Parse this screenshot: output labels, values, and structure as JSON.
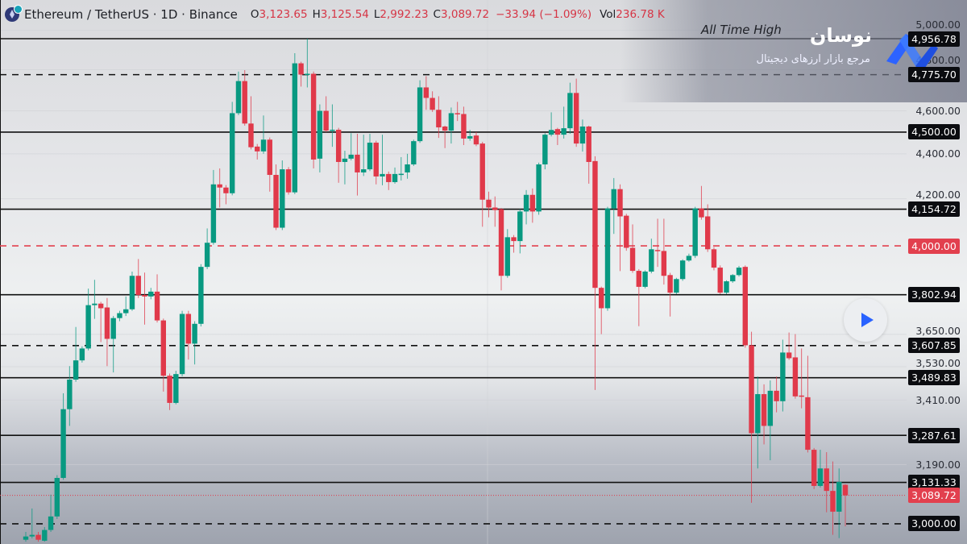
{
  "header": {
    "symbol": "Ethereum / TetherUS · 1D · Binance",
    "open_key": "O",
    "open": "3,123.65",
    "high_key": "H",
    "high": "3,125.54",
    "low_key": "L",
    "low": "2,992.23",
    "close_key": "C",
    "close": "3,089.72",
    "change": "−33.94 (−1.09%)",
    "vol_key": "Vol",
    "vol": "236.78 K"
  },
  "watermark": {
    "title": "نوسان",
    "subtitle": "مرجع بازار ارزهای دیجیتال"
  },
  "annotation": "All Time High",
  "colors": {
    "up": "#089981",
    "down": "#e0394a",
    "level": "#0b0c10",
    "key_level": "#e2404e"
  },
  "chart_data": {
    "type": "candlestick",
    "title": "Ethereum / TetherUS · 1D · Binance",
    "scale": "log",
    "ylim": [
      2935,
      5060
    ],
    "y_ticks": [
      "5,000.00",
      "4,800.00",
      "4,600.00",
      "4,400.00",
      "4,200.00",
      "3,650.00",
      "3,530.00",
      "3,410.00",
      "3,190.00"
    ],
    "y_tick_values": [
      5000,
      4800,
      4600,
      4400,
      4200,
      3650,
      3530,
      3410,
      3190
    ],
    "levels": [
      {
        "value": 4956.78,
        "label": "4,956.78",
        "style": "solid",
        "color": "black"
      },
      {
        "value": 4775.7,
        "label": "4,775.70",
        "style": "dashed",
        "color": "black"
      },
      {
        "value": 4500.0,
        "label": "4,500.00",
        "style": "solid",
        "color": "black"
      },
      {
        "value": 4154.72,
        "label": "4,154.72",
        "style": "solid",
        "color": "black"
      },
      {
        "value": 4000.0,
        "label": "4,000.00",
        "style": "dashed",
        "color": "red"
      },
      {
        "value": 3802.94,
        "label": "3,802.94",
        "style": "solid",
        "color": "black"
      },
      {
        "value": 3607.85,
        "label": "3,607.85",
        "style": "dashed",
        "color": "black"
      },
      {
        "value": 3489.83,
        "label": "3,489.83",
        "style": "solid",
        "color": "black"
      },
      {
        "value": 3287.61,
        "label": "3,287.61",
        "style": "solid",
        "color": "black"
      },
      {
        "value": 3131.33,
        "label": "3,131.33",
        "style": "solid",
        "color": "black"
      },
      {
        "value": 3000.0,
        "label": "3,000.00",
        "style": "dashed",
        "color": "black"
      }
    ],
    "last_price": {
      "value": 3089.72,
      "label": "3,089.72"
    },
    "ohlc": [
      [
        2951,
        2975,
        2945,
        2961
      ],
      [
        2961,
        3048,
        2955,
        2966
      ],
      [
        2966,
        2975,
        2945,
        2951
      ],
      [
        2948,
        2990,
        2945,
        2981
      ],
      [
        2981,
        3092,
        2975,
        3023
      ],
      [
        3023,
        3155,
        3015,
        3146
      ],
      [
        3146,
        3434,
        3140,
        3378
      ],
      [
        3378,
        3532,
        3320,
        3483
      ],
      [
        3483,
        3678,
        3475,
        3553
      ],
      [
        3553,
        3605,
        3545,
        3597
      ],
      [
        3597,
        3827,
        3590,
        3762
      ],
      [
        3762,
        3862,
        3709,
        3768
      ],
      [
        3768,
        3775,
        3621,
        3750
      ],
      [
        3753,
        3790,
        3532,
        3633
      ],
      [
        3633,
        3720,
        3509,
        3712
      ],
      [
        3712,
        3740,
        3700,
        3731
      ],
      [
        3731,
        3796,
        3720,
        3746
      ],
      [
        3746,
        3895,
        3740,
        3878
      ],
      [
        3878,
        3946,
        3790,
        3802
      ],
      [
        3802,
        3891,
        3687,
        3796
      ],
      [
        3796,
        3830,
        3785,
        3815
      ],
      [
        3815,
        3884,
        3695,
        3703
      ],
      [
        3703,
        3710,
        3440,
        3497
      ],
      [
        3497,
        3505,
        3375,
        3400
      ],
      [
        3400,
        3515,
        3395,
        3503
      ],
      [
        3503,
        3740,
        3495,
        3728
      ],
      [
        3728,
        3740,
        3556,
        3615
      ],
      [
        3615,
        3700,
        3538,
        3690
      ],
      [
        3690,
        3925,
        3680,
        3914
      ],
      [
        3914,
        4073,
        3905,
        4013
      ],
      [
        4013,
        4327,
        4005,
        4263
      ],
      [
        4263,
        4334,
        4162,
        4249
      ],
      [
        4249,
        4260,
        4176,
        4224
      ],
      [
        4224,
        4643,
        4215,
        4589
      ],
      [
        4589,
        4791,
        4580,
        4744
      ],
      [
        4744,
        4798,
        4530,
        4540
      ],
      [
        4540,
        4670,
        4420,
        4430
      ],
      [
        4433,
        4445,
        4374,
        4411
      ],
      [
        4411,
        4578,
        4400,
        4465
      ],
      [
        4465,
        4475,
        4231,
        4305
      ],
      [
        4305,
        4352,
        4066,
        4076
      ],
      [
        4076,
        4370,
        4066,
        4330
      ],
      [
        4330,
        4340,
        4218,
        4228
      ],
      [
        4228,
        4883,
        4220,
        4832
      ],
      [
        4832,
        4840,
        4717,
        4776
      ],
      [
        4776,
        4957,
        4713,
        4780
      ],
      [
        4780,
        4791,
        4334,
        4374
      ],
      [
        4378,
        4631,
        4316,
        4600
      ],
      [
        4600,
        4670,
        4500,
        4507
      ],
      [
        4507,
        4631,
        4432,
        4511
      ],
      [
        4511,
        4520,
        4270,
        4363
      ],
      [
        4363,
        4414,
        4263,
        4378
      ],
      [
        4378,
        4495,
        4370,
        4396
      ],
      [
        4396,
        4492,
        4214,
        4316
      ],
      [
        4316,
        4488,
        4300,
        4330
      ],
      [
        4330,
        4492,
        4322,
        4451
      ],
      [
        4451,
        4460,
        4263,
        4298
      ],
      [
        4298,
        4488,
        4259,
        4309
      ],
      [
        4309,
        4320,
        4238,
        4273
      ],
      [
        4273,
        4338,
        4266,
        4309
      ],
      [
        4305,
        4385,
        4280,
        4310
      ],
      [
        4316,
        4400,
        4288,
        4352
      ],
      [
        4352,
        4465,
        4345,
        4458
      ],
      [
        4458,
        4748,
        4450,
        4713
      ],
      [
        4713,
        4768,
        4605,
        4662
      ],
      [
        4662,
        4694,
        4595,
        4605
      ],
      [
        4605,
        4670,
        4473,
        4522
      ],
      [
        4526,
        4530,
        4426,
        4507
      ],
      [
        4507,
        4616,
        4447,
        4589
      ],
      [
        4589,
        4643,
        4552,
        4585
      ],
      [
        4585,
        4620,
        4440,
        4470
      ],
      [
        4470,
        4510,
        4460,
        4481
      ],
      [
        4484,
        4500,
        4435,
        4443
      ],
      [
        4447,
        4455,
        4080,
        4196
      ],
      [
        4196,
        4231,
        4120,
        4162
      ],
      [
        4162,
        4210,
        4080,
        4151
      ],
      [
        4155,
        4160,
        3820,
        3878
      ],
      [
        3878,
        4070,
        3870,
        4036
      ],
      [
        4036,
        4045,
        3972,
        4020
      ],
      [
        4020,
        4155,
        3969,
        4145
      ],
      [
        4145,
        4238,
        4090,
        4217
      ],
      [
        4217,
        4245,
        4097,
        4145
      ],
      [
        4145,
        4360,
        4131,
        4352
      ],
      [
        4352,
        4495,
        4330,
        4488
      ],
      [
        4488,
        4593,
        4480,
        4510
      ],
      [
        4514,
        4520,
        4440,
        4488
      ],
      [
        4488,
        4620,
        4470,
        4518
      ],
      [
        4518,
        4736,
        4492,
        4686
      ],
      [
        4686,
        4756,
        4432,
        4447
      ],
      [
        4447,
        4559,
        4410,
        4526
      ],
      [
        4526,
        4530,
        4266,
        4363
      ],
      [
        4367,
        4389,
        3446,
        3830
      ],
      [
        3830,
        3835,
        3651,
        3750
      ],
      [
        3750,
        4165,
        3740,
        4158
      ],
      [
        4158,
        4291,
        4050,
        4242
      ],
      [
        4242,
        4263,
        3897,
        4124
      ],
      [
        4127,
        4135,
        3980,
        3992
      ],
      [
        3992,
        4090,
        3890,
        3898
      ],
      [
        3898,
        3905,
        3681,
        3834
      ],
      [
        3834,
        3900,
        3828,
        3895
      ],
      [
        3895,
        4030,
        3888,
        3986
      ],
      [
        3983,
        4114,
        3914,
        3979
      ],
      [
        3979,
        4114,
        3843,
        3878
      ],
      [
        3881,
        3890,
        3718,
        3811
      ],
      [
        3811,
        3870,
        3805,
        3865
      ],
      [
        3865,
        3945,
        3858,
        3940
      ],
      [
        3940,
        3968,
        3935,
        3959
      ],
      [
        3959,
        4165,
        3950,
        4158
      ],
      [
        4158,
        4256,
        4110,
        4120
      ],
      [
        4124,
        4176,
        3975,
        3986
      ],
      [
        3986,
        3995,
        3900,
        3911
      ],
      [
        3911,
        3920,
        3805,
        3811
      ],
      [
        3811,
        3860,
        3805,
        3856
      ],
      [
        3856,
        3885,
        3850,
        3881
      ],
      [
        3881,
        3918,
        3875,
        3911
      ],
      [
        3914,
        3920,
        3600,
        3609
      ],
      [
        3609,
        3660,
        3066,
        3295
      ],
      [
        3295,
        3494,
        3177,
        3431
      ],
      [
        3431,
        3466,
        3257,
        3320
      ],
      [
        3320,
        3480,
        3204,
        3443
      ],
      [
        3443,
        3494,
        3367,
        3406
      ],
      [
        3406,
        3630,
        3370,
        3582
      ],
      [
        3582,
        3657,
        3555,
        3561
      ],
      [
        3564,
        3651,
        3415,
        3423
      ],
      [
        3426,
        3597,
        3381,
        3423
      ],
      [
        3420,
        3570,
        3230,
        3239
      ],
      [
        3239,
        3245,
        3110,
        3120
      ],
      [
        3120,
        3239,
        3115,
        3177
      ],
      [
        3177,
        3231,
        3036,
        3104
      ],
      [
        3104,
        3200,
        2966,
        3038
      ],
      [
        3038,
        3177,
        2956,
        3133
      ],
      [
        3123.65,
        3125.54,
        2992.23,
        3089.72
      ]
    ]
  }
}
